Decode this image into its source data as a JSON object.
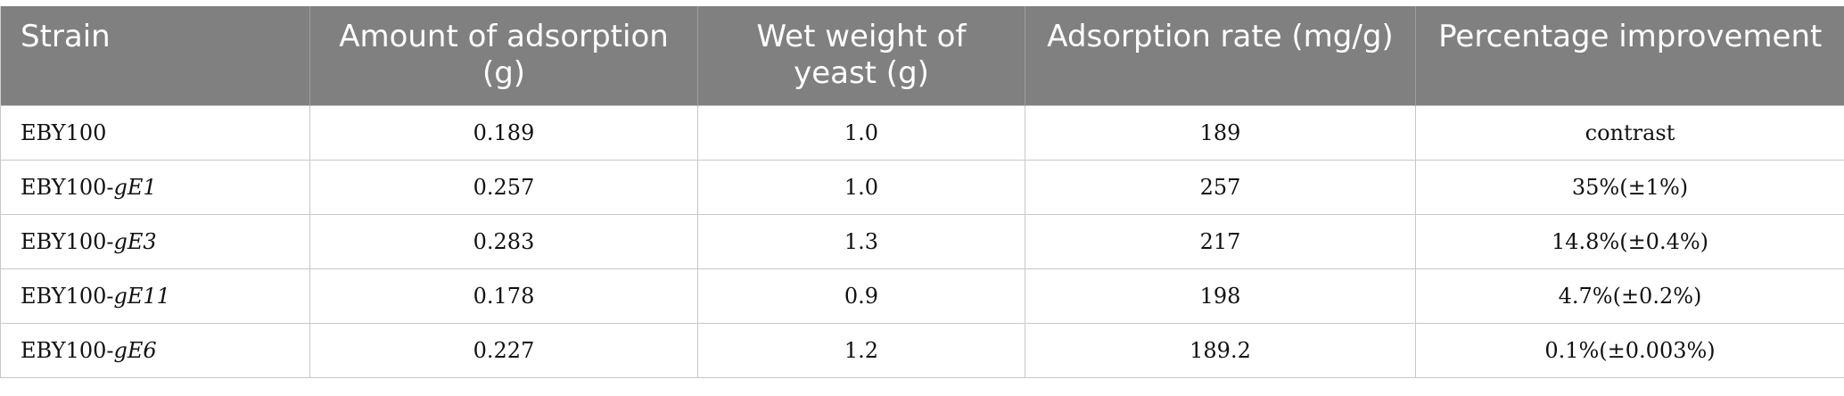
{
  "table": {
    "headers": [
      [
        "Strain"
      ],
      [
        "Amount of adsorption",
        "(g)"
      ],
      [
        "Wet weight of",
        "yeast (g)"
      ],
      [
        "Adsorption rate (mg/g)"
      ],
      [
        "Percentage improvement"
      ]
    ],
    "rows": [
      {
        "strain_base": "EBY100",
        "strain_gene": "",
        "amount": "0.189",
        "wet_weight": "1.0",
        "rate": "189",
        "improvement": "contrast"
      },
      {
        "strain_base": "EBY100-",
        "strain_gene": "gE1",
        "amount": "0.257",
        "wet_weight": "1.0",
        "rate": "257",
        "improvement": "35%(±1%)"
      },
      {
        "strain_base": "EBY100-",
        "strain_gene": "gE3",
        "amount": "0.283",
        "wet_weight": "1.3",
        "rate": "217",
        "improvement": "14.8%(±0.4%)"
      },
      {
        "strain_base": "EBY100-",
        "strain_gene": "gE11",
        "amount": "0.178",
        "wet_weight": "0.9",
        "rate": "198",
        "improvement": "4.7%(±0.2%)"
      },
      {
        "strain_base": "EBY100-",
        "strain_gene": "gE6",
        "amount": "0.227",
        "wet_weight": "1.2",
        "rate": "189.2",
        "improvement": "0.1%(±0.003%)"
      }
    ]
  }
}
